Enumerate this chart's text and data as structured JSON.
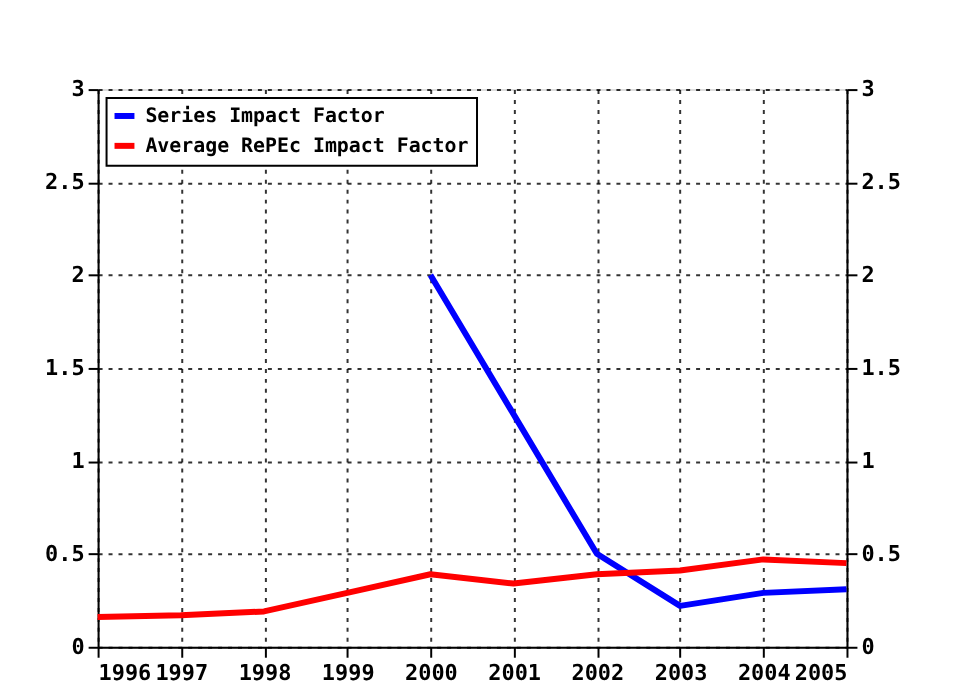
{
  "chart_data": {
    "type": "line",
    "x": [
      1996,
      1997,
      1998,
      1999,
      2000,
      2001,
      2002,
      2003,
      2004,
      2005
    ],
    "series": [
      {
        "name": "Series Impact Factor",
        "color": "#0000ff",
        "values": [
          null,
          null,
          null,
          null,
          2.0,
          1.25,
          0.5,
          0.22,
          0.29,
          0.31
        ]
      },
      {
        "name": "Average RePEc Impact Factor",
        "color": "#ff0000",
        "values": [
          0.16,
          0.17,
          0.19,
          0.29,
          0.39,
          0.34,
          0.39,
          0.41,
          0.47,
          0.45
        ]
      }
    ],
    "xlim": [
      1996,
      2005
    ],
    "xticks": [
      1996,
      1997,
      1998,
      1999,
      2000,
      2001,
      2002,
      2003,
      2004,
      2005
    ],
    "ylim": [
      0,
      3
    ],
    "yticks": [
      0,
      0.5,
      1,
      1.5,
      2,
      2.5,
      3
    ],
    "y2lim": [
      0,
      3
    ],
    "y2ticks": [
      0,
      0.5,
      1,
      1.5,
      2,
      2.5,
      3
    ],
    "grid": true,
    "legend": "top left",
    "marker": "none",
    "line_style": "solid"
  }
}
